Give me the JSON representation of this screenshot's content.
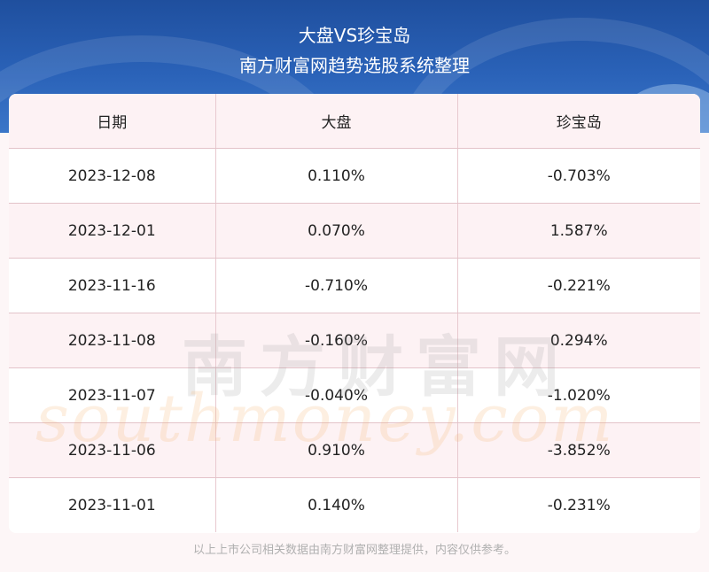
{
  "header": {
    "title": "大盘VS珍宝岛",
    "subtitle": "南方财富网趋势选股系统整理"
  },
  "table": {
    "columns": [
      "日期",
      "大盘",
      "珍宝岛"
    ],
    "rows": [
      [
        "2023-12-08",
        "0.110%",
        "-0.703%"
      ],
      [
        "2023-12-01",
        "0.070%",
        "1.587%"
      ],
      [
        "2023-11-16",
        "-0.710%",
        "-0.221%"
      ],
      [
        "2023-11-08",
        "-0.160%",
        "0.294%"
      ],
      [
        "2023-11-07",
        "-0.040%",
        "-1.020%"
      ],
      [
        "2023-11-06",
        "0.910%",
        "-3.852%"
      ],
      [
        "2023-11-01",
        "0.140%",
        "-0.231%"
      ]
    ]
  },
  "watermark": {
    "cn": "南方财富网",
    "en": "southmoney.com"
  },
  "footer": "以上上市公司相关数据由南方财富网整理提供，内容仅供参考。",
  "colors": {
    "header_blue": "#2a62b8",
    "row_pink": "#fdf2f4",
    "grid_line": "#e3c3c9"
  }
}
